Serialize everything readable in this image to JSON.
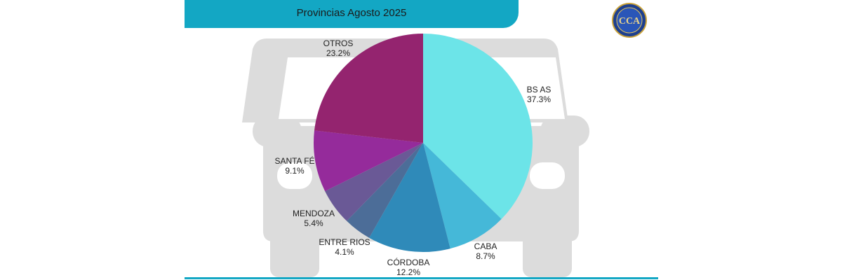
{
  "title": "Provincias Agosto 2025",
  "logo": {
    "lettering": "CCA",
    "icon": "cca-seal-logo"
  },
  "colors": {
    "banner": "#13a7c4",
    "car_silhouette": "#dcdcdc",
    "logo_blue": "#1d3f8f"
  },
  "chart_data": {
    "type": "pie",
    "title": "Provincias Agosto 2025",
    "start_angle_deg": 0,
    "direction": "clockwise",
    "slices": [
      {
        "label": "BS AS",
        "value": 37.3,
        "value_label": "37.3%",
        "color": "#6ce4e8"
      },
      {
        "label": "CABA",
        "value": 8.7,
        "value_label": "8.7%",
        "color": "#45b8d8"
      },
      {
        "label": "CÓRDOBA",
        "value": 12.2,
        "value_label": "12.2%",
        "color": "#2f8ab9"
      },
      {
        "label": "ENTRE RIOS",
        "value": 4.1,
        "value_label": "4.1%",
        "color": "#4c6d98"
      },
      {
        "label": "MENDOZA",
        "value": 5.4,
        "value_label": "5.4%",
        "color": "#6a5996"
      },
      {
        "label": "SANTA FÉ",
        "value": 9.1,
        "value_label": "9.1%",
        "color": "#952b9b"
      },
      {
        "label": "OTROS",
        "value": 23.2,
        "value_label": "23.2%",
        "color": "#94246f"
      }
    ]
  }
}
